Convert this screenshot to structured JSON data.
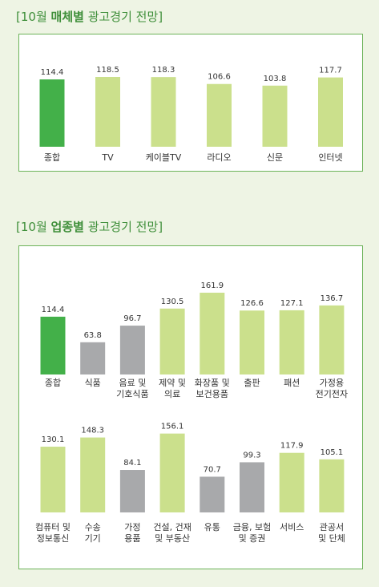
{
  "colors": {
    "highlight": "#43b049",
    "positive": "#cbe08c",
    "negative": "#a8a9ab"
  },
  "titles": [
    {
      "pre": "[10월 ",
      "bold": "매체별",
      "post": " 광고경기 전망]"
    },
    {
      "pre": "[10월 ",
      "bold": "업종별",
      "post": " 광고경기 전망]"
    }
  ],
  "chart_data": [
    {
      "type": "bar",
      "title": "[10월 매체별 광고경기 전망]",
      "categories": [
        "종합",
        "TV",
        "케이블TV",
        "라디오",
        "신문",
        "인터넷"
      ],
      "values": [
        114.4,
        118.5,
        118.3,
        106.6,
        103.8,
        117.7
      ],
      "ylim": [
        0,
        125
      ]
    },
    {
      "type": "bar",
      "title": "[10월 업종별 광고경기 전망]",
      "rows": [
        {
          "categories": [
            [
              "종합"
            ],
            [
              "식품"
            ],
            [
              "음료 및",
              "기호식품"
            ],
            [
              "제약 및",
              "의료"
            ],
            [
              "화장품 및",
              "보건용품"
            ],
            [
              "출판"
            ],
            [
              "패션"
            ],
            [
              "가정용",
              "전기전자"
            ]
          ],
          "values": [
            114.4,
            63.8,
            96.7,
            130.5,
            161.9,
            126.6,
            127.1,
            136.7
          ]
        },
        {
          "categories": [
            [
              "컴퓨터 및",
              "정보통신"
            ],
            [
              "수송",
              "기기"
            ],
            [
              "가정",
              "용품"
            ],
            [
              "건설, 건재",
              "및 부동산"
            ],
            [
              "유통"
            ],
            [
              "금융, 보험",
              "및 증권"
            ],
            [
              "서비스"
            ],
            [
              "관공서",
              "및 단체"
            ]
          ],
          "values": [
            130.1,
            148.3,
            84.1,
            156.1,
            70.7,
            99.3,
            117.9,
            105.1
          ]
        }
      ],
      "ylim": [
        0,
        165
      ]
    }
  ]
}
